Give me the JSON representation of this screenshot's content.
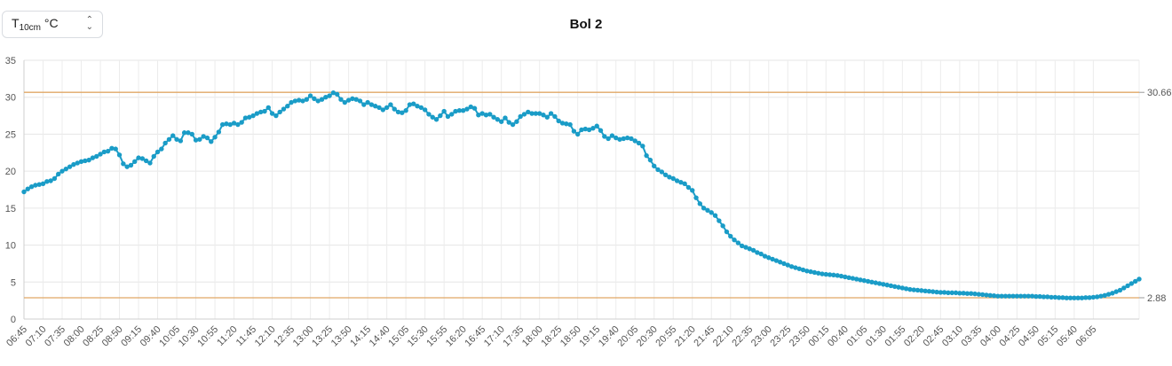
{
  "selector": {
    "main": "T",
    "sub": "10cm",
    "unit": "°C",
    "icon": "chevron-updown-icon"
  },
  "chart_data": {
    "type": "line",
    "title": "Bol 2",
    "ylim": [
      0,
      35
    ],
    "yticks": [
      0,
      5,
      10,
      15,
      20,
      25,
      30,
      35
    ],
    "grid": true,
    "xtick_every": 5,
    "x_labels": [
      "06:45",
      "07:10",
      "07:35",
      "08:00",
      "08:25",
      "08:50",
      "09:15",
      "09:40",
      "10:05",
      "10:30",
      "10:55",
      "11:20",
      "11:45",
      "12:10",
      "12:35",
      "13:00",
      "13:25",
      "13:50",
      "14:15",
      "14:40",
      "15:05",
      "15:30",
      "15:55",
      "16:20",
      "16:45",
      "17:10",
      "17:35",
      "18:00",
      "18:25",
      "18:50",
      "19:15",
      "19:40",
      "20:05",
      "20:30",
      "20:55",
      "21:20",
      "21:45",
      "22:10",
      "22:35",
      "23:00",
      "23:25",
      "23:50",
      "00:15",
      "00:40",
      "01:05",
      "01:30",
      "01:55",
      "02:20",
      "02:45",
      "03:10",
      "03:35",
      "04:00",
      "04:25",
      "04:50",
      "05:15",
      "05:40",
      "06:05"
    ],
    "reference_lines": [
      {
        "value": 30.66,
        "label": "30.66",
        "color": "#e0a766"
      },
      {
        "value": 2.88,
        "label": "2.88",
        "color": "#e0a766"
      }
    ],
    "series": [
      {
        "color": "#1a9cc7",
        "values": [
          17.2,
          17.6,
          17.9,
          18.1,
          18.2,
          18.3,
          18.6,
          18.7,
          19.0,
          19.6,
          20.0,
          20.3,
          20.6,
          20.9,
          21.1,
          21.3,
          21.4,
          21.5,
          21.8,
          22.0,
          22.3,
          22.6,
          22.7,
          23.1,
          23.0,
          22.2,
          21.0,
          20.6,
          20.8,
          21.3,
          21.8,
          21.7,
          21.4,
          21.1,
          22.0,
          22.6,
          23.0,
          23.8,
          24.3,
          24.8,
          24.3,
          24.1,
          25.2,
          25.2,
          25.0,
          24.2,
          24.3,
          24.7,
          24.5,
          24.0,
          24.6,
          25.3,
          26.3,
          26.4,
          26.3,
          26.5,
          26.3,
          26.6,
          27.2,
          27.3,
          27.5,
          27.8,
          28.0,
          28.1,
          28.6,
          27.8,
          27.5,
          28.0,
          28.4,
          28.8,
          29.3,
          29.5,
          29.6,
          29.5,
          29.7,
          30.2,
          29.8,
          29.5,
          29.7,
          30.0,
          30.2,
          30.6,
          30.4,
          29.7,
          29.3,
          29.6,
          29.8,
          29.7,
          29.5,
          29.0,
          29.3,
          29.0,
          28.8,
          28.6,
          28.3,
          28.6,
          29.0,
          28.4,
          28.0,
          27.9,
          28.2,
          29.0,
          29.1,
          28.8,
          28.6,
          28.3,
          27.7,
          27.3,
          27.0,
          27.5,
          28.1,
          27.4,
          27.7,
          28.1,
          28.2,
          28.2,
          28.4,
          28.7,
          28.5,
          27.6,
          27.8,
          27.6,
          27.7,
          27.3,
          27.0,
          26.7,
          27.2,
          26.6,
          26.3,
          26.7,
          27.4,
          27.7,
          28.0,
          27.8,
          27.8,
          27.8,
          27.6,
          27.3,
          27.8,
          27.4,
          26.8,
          26.5,
          26.4,
          26.3,
          25.4,
          25.0,
          25.6,
          25.7,
          25.6,
          25.8,
          26.1,
          25.5,
          24.7,
          24.4,
          24.8,
          24.5,
          24.3,
          24.4,
          24.5,
          24.4,
          24.1,
          23.8,
          23.4,
          22.1,
          21.5,
          20.7,
          20.2,
          19.9,
          19.5,
          19.2,
          19.0,
          18.7,
          18.5,
          18.3,
          17.8,
          17.4,
          16.4,
          15.6,
          15.0,
          14.7,
          14.4,
          14.0,
          13.3,
          12.6,
          11.8,
          11.2,
          10.7,
          10.3,
          9.9,
          9.7,
          9.5,
          9.3,
          9.0,
          8.8,
          8.5,
          8.3,
          8.1,
          7.9,
          7.7,
          7.5,
          7.3,
          7.1,
          6.95,
          6.8,
          6.65,
          6.5,
          6.4,
          6.3,
          6.2,
          6.1,
          6.05,
          6.0,
          5.95,
          5.9,
          5.8,
          5.7,
          5.6,
          5.5,
          5.4,
          5.3,
          5.2,
          5.1,
          5.0,
          4.9,
          4.8,
          4.7,
          4.6,
          4.5,
          4.4,
          4.3,
          4.2,
          4.1,
          4.0,
          3.95,
          3.9,
          3.85,
          3.8,
          3.75,
          3.7,
          3.65,
          3.6,
          3.6,
          3.55,
          3.55,
          3.55,
          3.5,
          3.5,
          3.45,
          3.45,
          3.4,
          3.35,
          3.3,
          3.25,
          3.2,
          3.15,
          3.1,
          3.1,
          3.1,
          3.1,
          3.1,
          3.1,
          3.1,
          3.1,
          3.1,
          3.1,
          3.05,
          3.05,
          3.0,
          3.0,
          2.95,
          2.95,
          2.9,
          2.9,
          2.85,
          2.85,
          2.85,
          2.85,
          2.85,
          2.9,
          2.9,
          2.95,
          3.0,
          3.1,
          3.2,
          3.35,
          3.5,
          3.7,
          3.9,
          4.2,
          4.5,
          4.8,
          5.1,
          5.4
        ]
      }
    ]
  }
}
